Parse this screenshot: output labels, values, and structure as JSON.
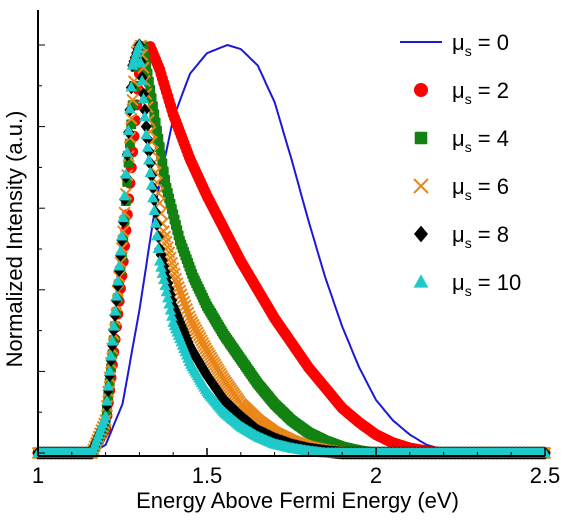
{
  "chart_data": {
    "type": "line",
    "title": "",
    "xlabel": "Energy Above Fermi Energy (eV)",
    "ylabel": "Normalized Intensity (a.u.)",
    "xlim": [
      1.0,
      2.5
    ],
    "ylim": [
      0.0,
      1.0
    ],
    "x_ticks": [
      "1",
      "1.5",
      "2",
      "2.5"
    ],
    "x_tick_values": [
      1.0,
      1.5,
      2.0,
      2.5
    ],
    "y_ticks_labeled": false,
    "grid": false,
    "legend_position": "top-right",
    "legend_label_prefix": "μ",
    "legend_label_subscript": "s",
    "series": [
      {
        "name": "μs = 0",
        "label_value": "= 0",
        "marker": "line",
        "color": "#1a1ad6",
        "peak_x": 1.56,
        "points": [
          [
            1.0,
            0.0
          ],
          [
            1.16,
            0.0
          ],
          [
            1.2,
            0.02
          ],
          [
            1.25,
            0.12
          ],
          [
            1.3,
            0.35
          ],
          [
            1.35,
            0.62
          ],
          [
            1.4,
            0.82
          ],
          [
            1.45,
            0.93
          ],
          [
            1.5,
            0.98
          ],
          [
            1.56,
            1.0
          ],
          [
            1.6,
            0.99
          ],
          [
            1.65,
            0.95
          ],
          [
            1.7,
            0.86
          ],
          [
            1.75,
            0.72
          ],
          [
            1.8,
            0.57
          ],
          [
            1.85,
            0.43
          ],
          [
            1.9,
            0.31
          ],
          [
            1.95,
            0.21
          ],
          [
            2.0,
            0.13
          ],
          [
            2.05,
            0.08
          ],
          [
            2.1,
            0.045
          ],
          [
            2.15,
            0.02
          ],
          [
            2.2,
            0.008
          ],
          [
            2.25,
            0.0
          ],
          [
            2.5,
            0.0
          ]
        ]
      },
      {
        "name": "μs = 2",
        "label_value": "= 2",
        "marker": "circle",
        "color": "#ff0000",
        "peak_x": 1.33,
        "points": [
          [
            1.0,
            0.0
          ],
          [
            1.16,
            0.0
          ],
          [
            1.2,
            0.06
          ],
          [
            1.25,
            0.45
          ],
          [
            1.3,
            0.93
          ],
          [
            1.33,
            1.0
          ],
          [
            1.36,
            0.94
          ],
          [
            1.4,
            0.83
          ],
          [
            1.45,
            0.72
          ],
          [
            1.5,
            0.63
          ],
          [
            1.55,
            0.55
          ],
          [
            1.6,
            0.47
          ],
          [
            1.65,
            0.4
          ],
          [
            1.7,
            0.33
          ],
          [
            1.75,
            0.27
          ],
          [
            1.8,
            0.21
          ],
          [
            1.85,
            0.16
          ],
          [
            1.9,
            0.11
          ],
          [
            1.95,
            0.075
          ],
          [
            2.0,
            0.045
          ],
          [
            2.05,
            0.025
          ],
          [
            2.1,
            0.012
          ],
          [
            2.15,
            0.005
          ],
          [
            2.2,
            0.0
          ],
          [
            2.5,
            0.0
          ]
        ]
      },
      {
        "name": "μs = 4",
        "label_value": "= 4",
        "marker": "square",
        "color": "#138213",
        "peak_x": 1.31,
        "points": [
          [
            1.0,
            0.0
          ],
          [
            1.16,
            0.0
          ],
          [
            1.2,
            0.07
          ],
          [
            1.25,
            0.5
          ],
          [
            1.29,
            0.97
          ],
          [
            1.31,
            1.0
          ],
          [
            1.34,
            0.85
          ],
          [
            1.38,
            0.65
          ],
          [
            1.42,
            0.52
          ],
          [
            1.46,
            0.43
          ],
          [
            1.5,
            0.36
          ],
          [
            1.55,
            0.29
          ],
          [
            1.6,
            0.23
          ],
          [
            1.65,
            0.17
          ],
          [
            1.7,
            0.12
          ],
          [
            1.75,
            0.08
          ],
          [
            1.8,
            0.05
          ],
          [
            1.85,
            0.03
          ],
          [
            1.9,
            0.015
          ],
          [
            1.95,
            0.006
          ],
          [
            2.0,
            0.0
          ],
          [
            2.5,
            0.0
          ]
        ]
      },
      {
        "name": "μs = 6",
        "label_value": "= 6",
        "marker": "x",
        "color": "#e8861a",
        "peak_x": 1.305,
        "points": [
          [
            1.0,
            0.0
          ],
          [
            1.16,
            0.0
          ],
          [
            1.2,
            0.08
          ],
          [
            1.25,
            0.52
          ],
          [
            1.29,
            0.98
          ],
          [
            1.305,
            1.0
          ],
          [
            1.33,
            0.8
          ],
          [
            1.37,
            0.55
          ],
          [
            1.41,
            0.42
          ],
          [
            1.45,
            0.33
          ],
          [
            1.5,
            0.25
          ],
          [
            1.55,
            0.18
          ],
          [
            1.6,
            0.12
          ],
          [
            1.65,
            0.08
          ],
          [
            1.7,
            0.05
          ],
          [
            1.75,
            0.03
          ],
          [
            1.8,
            0.015
          ],
          [
            1.85,
            0.006
          ],
          [
            1.9,
            0.0
          ],
          [
            2.5,
            0.0
          ]
        ]
      },
      {
        "name": "μs = 8",
        "label_value": "= 8",
        "marker": "diamond",
        "color": "#000000",
        "peak_x": 1.3,
        "points": [
          [
            1.0,
            0.0
          ],
          [
            1.16,
            0.0
          ],
          [
            1.2,
            0.08
          ],
          [
            1.25,
            0.54
          ],
          [
            1.28,
            0.95
          ],
          [
            1.3,
            1.0
          ],
          [
            1.32,
            0.8
          ],
          [
            1.36,
            0.5
          ],
          [
            1.4,
            0.36
          ],
          [
            1.45,
            0.26
          ],
          [
            1.5,
            0.19
          ],
          [
            1.55,
            0.13
          ],
          [
            1.6,
            0.09
          ],
          [
            1.65,
            0.055
          ],
          [
            1.7,
            0.035
          ],
          [
            1.75,
            0.02
          ],
          [
            1.8,
            0.01
          ],
          [
            1.85,
            0.004
          ],
          [
            1.9,
            0.0
          ],
          [
            2.5,
            0.0
          ]
        ]
      },
      {
        "name": "μs = 10",
        "label_value": "= 10",
        "marker": "triangle",
        "color": "#1ec9c9",
        "peak_x": 1.3,
        "points": [
          [
            1.0,
            0.0
          ],
          [
            1.16,
            0.0
          ],
          [
            1.2,
            0.09
          ],
          [
            1.25,
            0.55
          ],
          [
            1.28,
            0.95
          ],
          [
            1.3,
            1.0
          ],
          [
            1.32,
            0.78
          ],
          [
            1.36,
            0.47
          ],
          [
            1.4,
            0.32
          ],
          [
            1.45,
            0.22
          ],
          [
            1.5,
            0.15
          ],
          [
            1.55,
            0.1
          ],
          [
            1.6,
            0.065
          ],
          [
            1.65,
            0.04
          ],
          [
            1.7,
            0.022
          ],
          [
            1.75,
            0.012
          ],
          [
            1.8,
            0.005
          ],
          [
            1.85,
            0.0
          ],
          [
            2.5,
            0.0
          ]
        ]
      }
    ]
  }
}
